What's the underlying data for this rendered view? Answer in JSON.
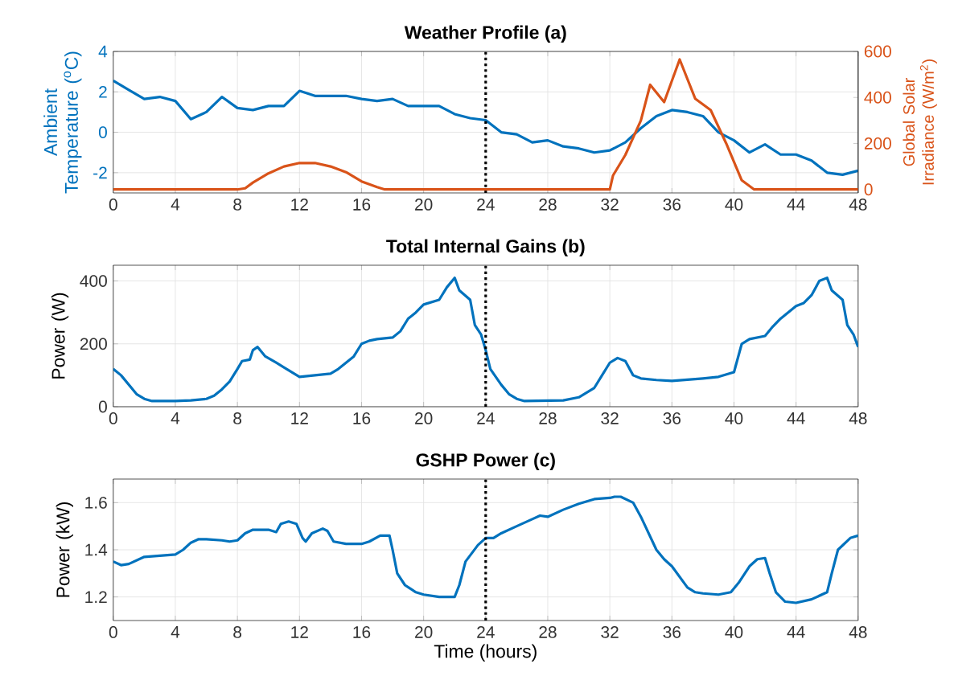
{
  "chart_data": [
    {
      "type": "line",
      "title": "Weather Profile (a)",
      "ylabel": "Ambient Temperature ($^{o}$C)",
      "y2label": "Global Solar Irradiance (W/m$^{2}$)",
      "xlim": [
        0,
        48
      ],
      "xticks": [
        0,
        4,
        8,
        12,
        16,
        20,
        24,
        28,
        32,
        36,
        40,
        44,
        48
      ],
      "ylim": [
        -3,
        4
      ],
      "yticks": [
        -2,
        0,
        2,
        4
      ],
      "y2lim": [
        -15,
        600
      ],
      "y2ticks": [
        0,
        200,
        400,
        600
      ],
      "grid": true,
      "ref_lines": [
        {
          "axis": "x",
          "value": 24,
          "color": "#000000",
          "line_style": "dotted"
        }
      ],
      "series": [
        {
          "color": "#0072bd",
          "x": [
            0,
            1,
            2,
            3,
            4,
            5,
            6,
            7,
            8,
            9,
            10,
            11,
            12,
            13,
            14,
            15,
            16,
            17,
            18,
            19,
            20,
            21,
            22,
            23,
            24,
            25,
            26,
            27,
            28,
            29,
            30,
            31,
            32,
            33,
            34,
            35,
            36,
            37,
            38,
            39,
            40,
            41,
            42,
            43,
            44,
            45,
            46,
            47,
            48
          ],
          "values": [
            2.55,
            2.1,
            1.65,
            1.75,
            1.55,
            0.65,
            1.0,
            1.75,
            1.2,
            1.1,
            1.3,
            1.3,
            2.05,
            1.8,
            1.8,
            1.8,
            1.65,
            1.55,
            1.65,
            1.3,
            1.3,
            1.3,
            0.9,
            0.7,
            0.6,
            0.0,
            -0.1,
            -0.5,
            -0.4,
            -0.7,
            -0.8,
            -1.0,
            -0.9,
            -0.5,
            0.2,
            0.8,
            1.1,
            1.0,
            0.8,
            0.0,
            -0.4,
            -1.0,
            -0.6,
            -1.1,
            -1.1,
            -1.4,
            -2.0,
            -2.1,
            -1.9
          ]
        },
        {
          "color": "#d95319",
          "axis": "y2",
          "x": [
            0,
            8,
            8.5,
            9,
            10,
            11,
            12,
            13,
            14,
            15,
            16,
            17,
            17.5,
            32,
            32.2,
            33,
            34,
            34.6,
            35.5,
            36.5,
            37.5,
            38.5,
            39.5,
            40.5,
            41.3,
            48
          ],
          "values": [
            0,
            0,
            5,
            30,
            70,
            100,
            115,
            115,
            100,
            75,
            35,
            10,
            0,
            0,
            60,
            150,
            300,
            455,
            380,
            565,
            395,
            345,
            200,
            40,
            0,
            0
          ]
        }
      ]
    },
    {
      "type": "line",
      "title": "Total Internal Gains (b)",
      "ylabel": "Power (W)",
      "xlim": [
        0,
        48
      ],
      "xticks": [
        0,
        4,
        8,
        12,
        16,
        20,
        24,
        28,
        32,
        36,
        40,
        44,
        48
      ],
      "ylim": [
        0,
        450
      ],
      "yticks": [
        0,
        200,
        400
      ],
      "grid": true,
      "ref_lines": [
        {
          "axis": "x",
          "value": 24,
          "color": "#000000",
          "line_style": "dotted"
        }
      ],
      "series": [
        {
          "color": "#0072bd",
          "x": [
            0,
            0.5,
            1,
            1.5,
            2,
            2.5,
            4,
            5,
            6,
            6.5,
            7,
            7.5,
            8,
            8.3,
            8.8,
            9,
            9.3,
            9.8,
            10.5,
            11,
            11.5,
            12,
            13,
            14,
            14.5,
            15,
            15.5,
            16,
            16.5,
            17,
            18,
            18.5,
            19,
            19.5,
            20,
            21,
            21.5,
            22,
            22.3,
            23,
            23.3,
            23.7,
            24,
            24.3,
            25,
            25.5,
            26,
            26.5,
            29,
            30,
            31,
            31.5,
            32,
            32.5,
            33,
            33.5,
            34,
            35,
            36,
            38,
            39,
            40,
            40.5,
            41,
            42,
            42.5,
            43,
            44,
            44.5,
            45,
            45.5,
            46,
            46.3,
            47,
            47.3,
            47.7,
            48
          ],
          "values": [
            120,
            100,
            70,
            40,
            25,
            18,
            18,
            20,
            25,
            35,
            55,
            80,
            120,
            145,
            150,
            180,
            190,
            160,
            140,
            125,
            110,
            95,
            100,
            105,
            120,
            140,
            160,
            200,
            210,
            215,
            220,
            240,
            280,
            300,
            325,
            340,
            380,
            410,
            370,
            340,
            260,
            230,
            180,
            120,
            70,
            40,
            25,
            18,
            20,
            30,
            60,
            100,
            140,
            155,
            145,
            100,
            90,
            85,
            82,
            90,
            95,
            110,
            200,
            215,
            225,
            255,
            280,
            320,
            330,
            355,
            400,
            410,
            370,
            340,
            260,
            230,
            190
          ]
        }
      ]
    },
    {
      "type": "line",
      "title": "GSHP Power (c)",
      "ylabel": "Power (kW)",
      "xlabel": "Time (hours)",
      "xlim": [
        0,
        48
      ],
      "xticks": [
        0,
        4,
        8,
        12,
        16,
        20,
        24,
        28,
        32,
        36,
        40,
        44,
        48
      ],
      "ylim": [
        1.1,
        1.7
      ],
      "yticks": [
        1.2,
        1.4,
        1.6
      ],
      "grid": true,
      "ref_lines": [
        {
          "axis": "x",
          "value": 24,
          "color": "#000000",
          "line_style": "dotted"
        }
      ],
      "series": [
        {
          "color": "#0072bd",
          "x": [
            0,
            0.5,
            1,
            2,
            3,
            4,
            4.5,
            5,
            5.5,
            6,
            7,
            7.5,
            8,
            8.5,
            9,
            10,
            10.5,
            10.8,
            11.3,
            11.8,
            12.2,
            12.4,
            12.8,
            13.5,
            13.8,
            14.2,
            15,
            16,
            16.5,
            17.2,
            17.8,
            18,
            18.3,
            18.8,
            19.5,
            20,
            21,
            22,
            22.3,
            22.7,
            23.5,
            24,
            24.5,
            25,
            26,
            27,
            27.5,
            28,
            29,
            30,
            31,
            32,
            32.3,
            32.7,
            33.5,
            34,
            35,
            35.5,
            36,
            37,
            37.5,
            38,
            39,
            39.8,
            40.3,
            41,
            41.5,
            42,
            42.3,
            42.7,
            43.3,
            44,
            45,
            46,
            46.3,
            46.7,
            47.5,
            48
          ],
          "values": [
            1.35,
            1.335,
            1.34,
            1.37,
            1.375,
            1.38,
            1.4,
            1.43,
            1.445,
            1.445,
            1.44,
            1.435,
            1.44,
            1.47,
            1.485,
            1.485,
            1.475,
            1.51,
            1.52,
            1.51,
            1.45,
            1.435,
            1.47,
            1.49,
            1.48,
            1.435,
            1.425,
            1.425,
            1.435,
            1.46,
            1.46,
            1.4,
            1.3,
            1.25,
            1.22,
            1.21,
            1.2,
            1.2,
            1.25,
            1.35,
            1.42,
            1.45,
            1.45,
            1.47,
            1.5,
            1.53,
            1.545,
            1.54,
            1.57,
            1.595,
            1.615,
            1.62,
            1.625,
            1.625,
            1.6,
            1.54,
            1.4,
            1.36,
            1.33,
            1.24,
            1.22,
            1.215,
            1.21,
            1.22,
            1.26,
            1.33,
            1.36,
            1.365,
            1.3,
            1.22,
            1.18,
            1.175,
            1.19,
            1.22,
            1.3,
            1.4,
            1.45,
            1.46
          ]
        }
      ]
    }
  ]
}
